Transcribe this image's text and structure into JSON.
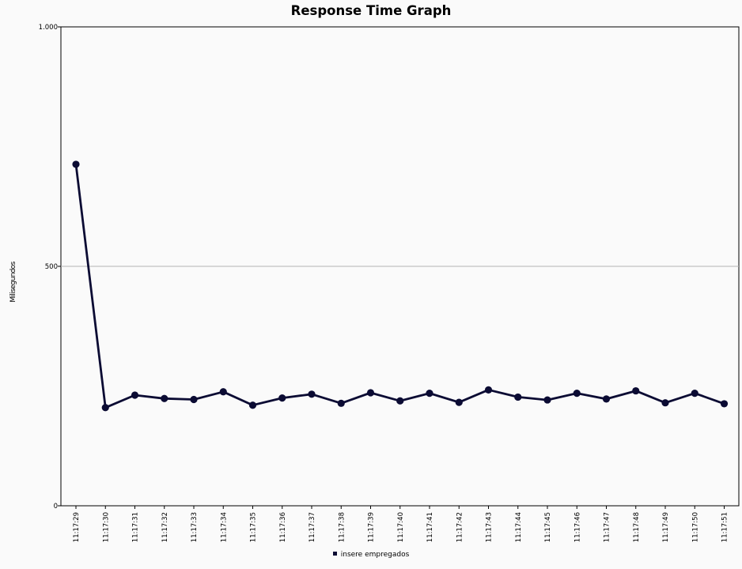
{
  "chart_data": {
    "type": "line",
    "title": "Response Time Graph",
    "xlabel": "",
    "ylabel": "Milisegundos",
    "ylim": [
      0,
      1000
    ],
    "yticks": [
      0,
      500,
      1000
    ],
    "ytick_labels": [
      "0",
      "500",
      "1.000"
    ],
    "grid": "horizontal",
    "legend_position": "bottom",
    "categories": [
      "11:17:29",
      "11:17:30",
      "11:17:31",
      "11:17:32",
      "11:17:33",
      "11:17:34",
      "11:17:35",
      "11:17:36",
      "11:17:37",
      "11:17:38",
      "11:17:39",
      "11:17:40",
      "11:17:41",
      "11:17:42",
      "11:17:43",
      "11:17:44",
      "11:17:45",
      "11:17:46",
      "11:17:47",
      "11:17:48",
      "11:17:49",
      "11:17:50",
      "11:17:51"
    ],
    "series": [
      {
        "name": "insere empregados",
        "color": "#0b0b33",
        "values": [
          713,
          205,
          231,
          224,
          222,
          238,
          210,
          225,
          233,
          214,
          236,
          219,
          235,
          216,
          242,
          227,
          221,
          235,
          223,
          240,
          215,
          235,
          213
        ]
      }
    ]
  }
}
